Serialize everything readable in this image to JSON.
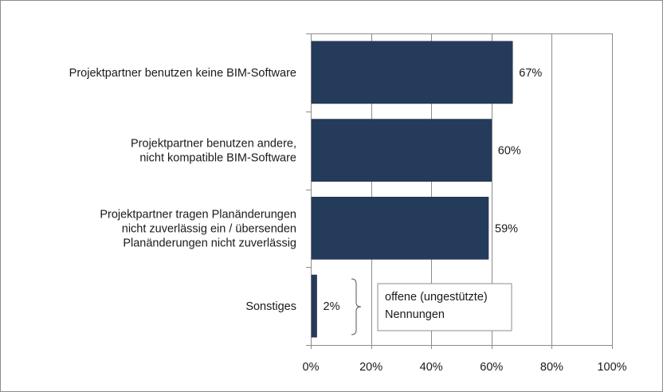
{
  "chart_data": {
    "type": "bar",
    "orientation": "horizontal",
    "categories": [
      [
        "Projektpartner benutzen keine BIM-Software"
      ],
      [
        "Projektpartner benutzen andere,",
        "nicht kompatible BIM-Software"
      ],
      [
        "Projektpartner tragen Planänderungen",
        "nicht zuverlässig ein / übersenden",
        "Planänderungen nicht zuverlässig"
      ],
      [
        "Sonstiges"
      ]
    ],
    "values": [
      67,
      60,
      59,
      2
    ],
    "value_labels": [
      "67%",
      "60%",
      "59%",
      "2%"
    ],
    "xlim": [
      0,
      100
    ],
    "x_ticks": [
      0,
      20,
      40,
      60,
      80,
      100
    ],
    "x_tick_labels": [
      "0%",
      "20%",
      "40%",
      "60%",
      "80%",
      "100%"
    ],
    "grid": true,
    "bar_color": "#253b5b",
    "annotation": [
      "offene (ungestützte)",
      "Nennungen"
    ]
  }
}
